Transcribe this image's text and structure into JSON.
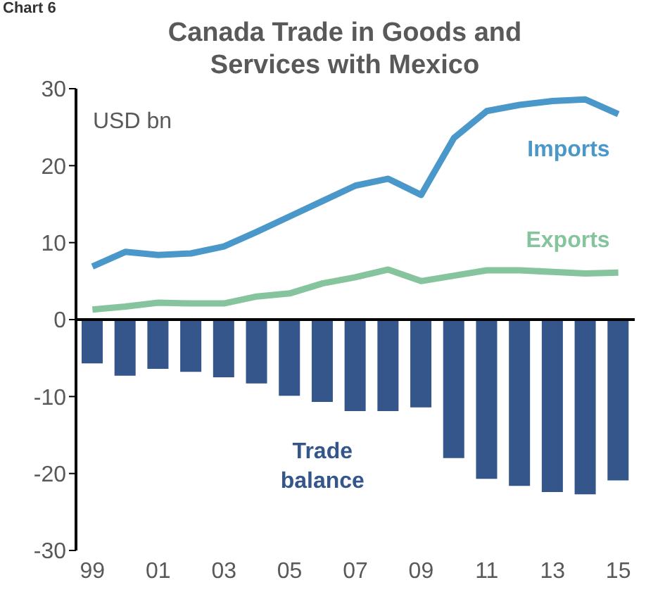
{
  "chart_data": {
    "type": "line",
    "title": "Canada Trade in Goods and Services with Mexico",
    "ylabel": "USD bn",
    "annotations": [
      "Chart 6"
    ],
    "categories": [
      "99",
      null,
      "01",
      null,
      "03",
      null,
      "05",
      null,
      "07",
      null,
      "09",
      null,
      "11",
      null,
      "13",
      null,
      "15"
    ],
    "series": [
      {
        "name": "Trade balance",
        "type": "bar",
        "color": "#34568a",
        "values": [
          -5.7,
          -7.3,
          -6.4,
          -6.8,
          -7.5,
          -8.3,
          -9.9,
          -10.7,
          -11.9,
          -11.9,
          -11.4,
          -18.0,
          -20.7,
          -21.6,
          -22.4,
          -22.7,
          -20.9
        ]
      },
      {
        "name": "Imports",
        "color": "#4a98c9",
        "values": [
          6.9,
          8.8,
          8.4,
          8.6,
          9.5,
          11.4,
          13.4,
          15.4,
          17.4,
          18.3,
          16.2,
          23.6,
          27.1,
          27.9,
          28.4,
          28.6,
          26.7
        ]
      },
      {
        "name": "Exports",
        "color": "#86c49e",
        "values": [
          1.3,
          1.7,
          2.2,
          2.1,
          2.1,
          3.0,
          3.4,
          4.7,
          5.5,
          6.5,
          5.0,
          5.7,
          6.4,
          6.4,
          6.2,
          6.0,
          6.1
        ]
      }
    ],
    "ylim": [
      -30,
      30
    ],
    "yticks": [
      -30,
      -20,
      -10,
      0,
      10,
      20,
      30
    ],
    "legend": false,
    "marker": "none",
    "line_style": "solid"
  }
}
